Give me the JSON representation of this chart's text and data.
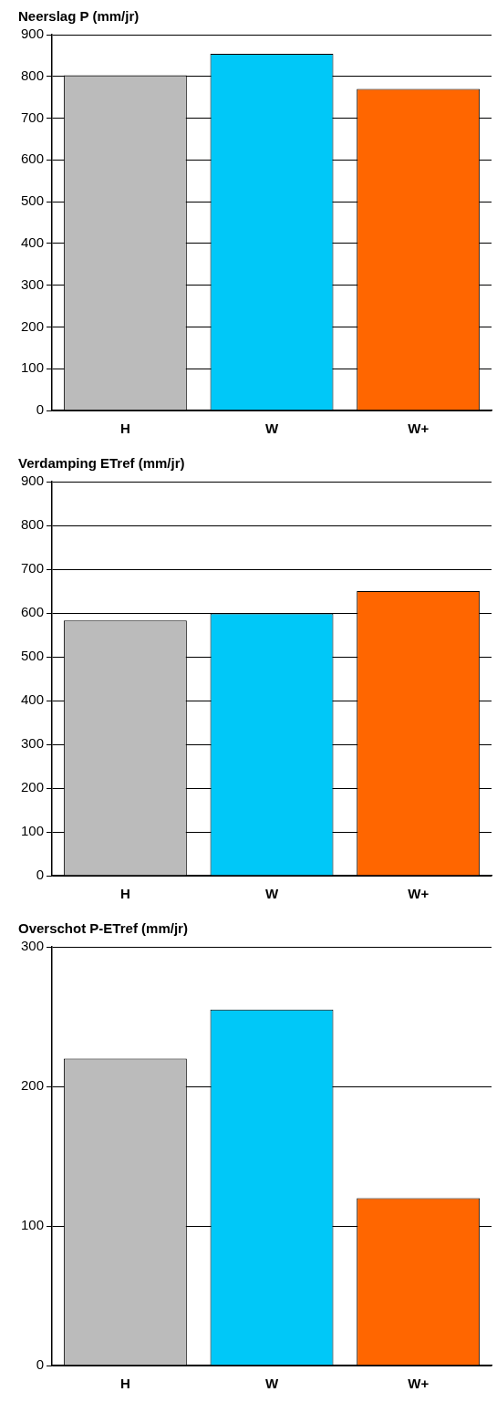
{
  "chart_data": [
    {
      "type": "bar",
      "title": "Neerslag P (mm/jr)",
      "categories": [
        "H",
        "W",
        "W+"
      ],
      "values": [
        803,
        854,
        770
      ],
      "colors": [
        "#bbbbbb",
        "#00c8f8",
        "#ff6600"
      ],
      "ylim": [
        0,
        900
      ],
      "yticks": [
        0,
        100,
        200,
        300,
        400,
        500,
        600,
        700,
        800,
        900
      ],
      "grid": "y"
    },
    {
      "type": "bar",
      "title": "Verdamping ETref (mm/jr)",
      "categories": [
        "H",
        "W",
        "W+"
      ],
      "values": [
        583,
        599,
        650
      ],
      "colors": [
        "#bbbbbb",
        "#00c8f8",
        "#ff6600"
      ],
      "ylim": [
        0,
        900
      ],
      "yticks": [
        0,
        100,
        200,
        300,
        400,
        500,
        600,
        700,
        800,
        900
      ],
      "grid": "y"
    },
    {
      "type": "bar",
      "title": "Overschot P-ETref (mm/jr)",
      "categories": [
        "H",
        "W",
        "W+"
      ],
      "values": [
        220,
        255,
        120
      ],
      "colors": [
        "#bbbbbb",
        "#00c8f8",
        "#ff6600"
      ],
      "ylim": [
        0,
        300
      ],
      "yticks": [
        0,
        100,
        200,
        300
      ],
      "grid": "y"
    }
  ]
}
